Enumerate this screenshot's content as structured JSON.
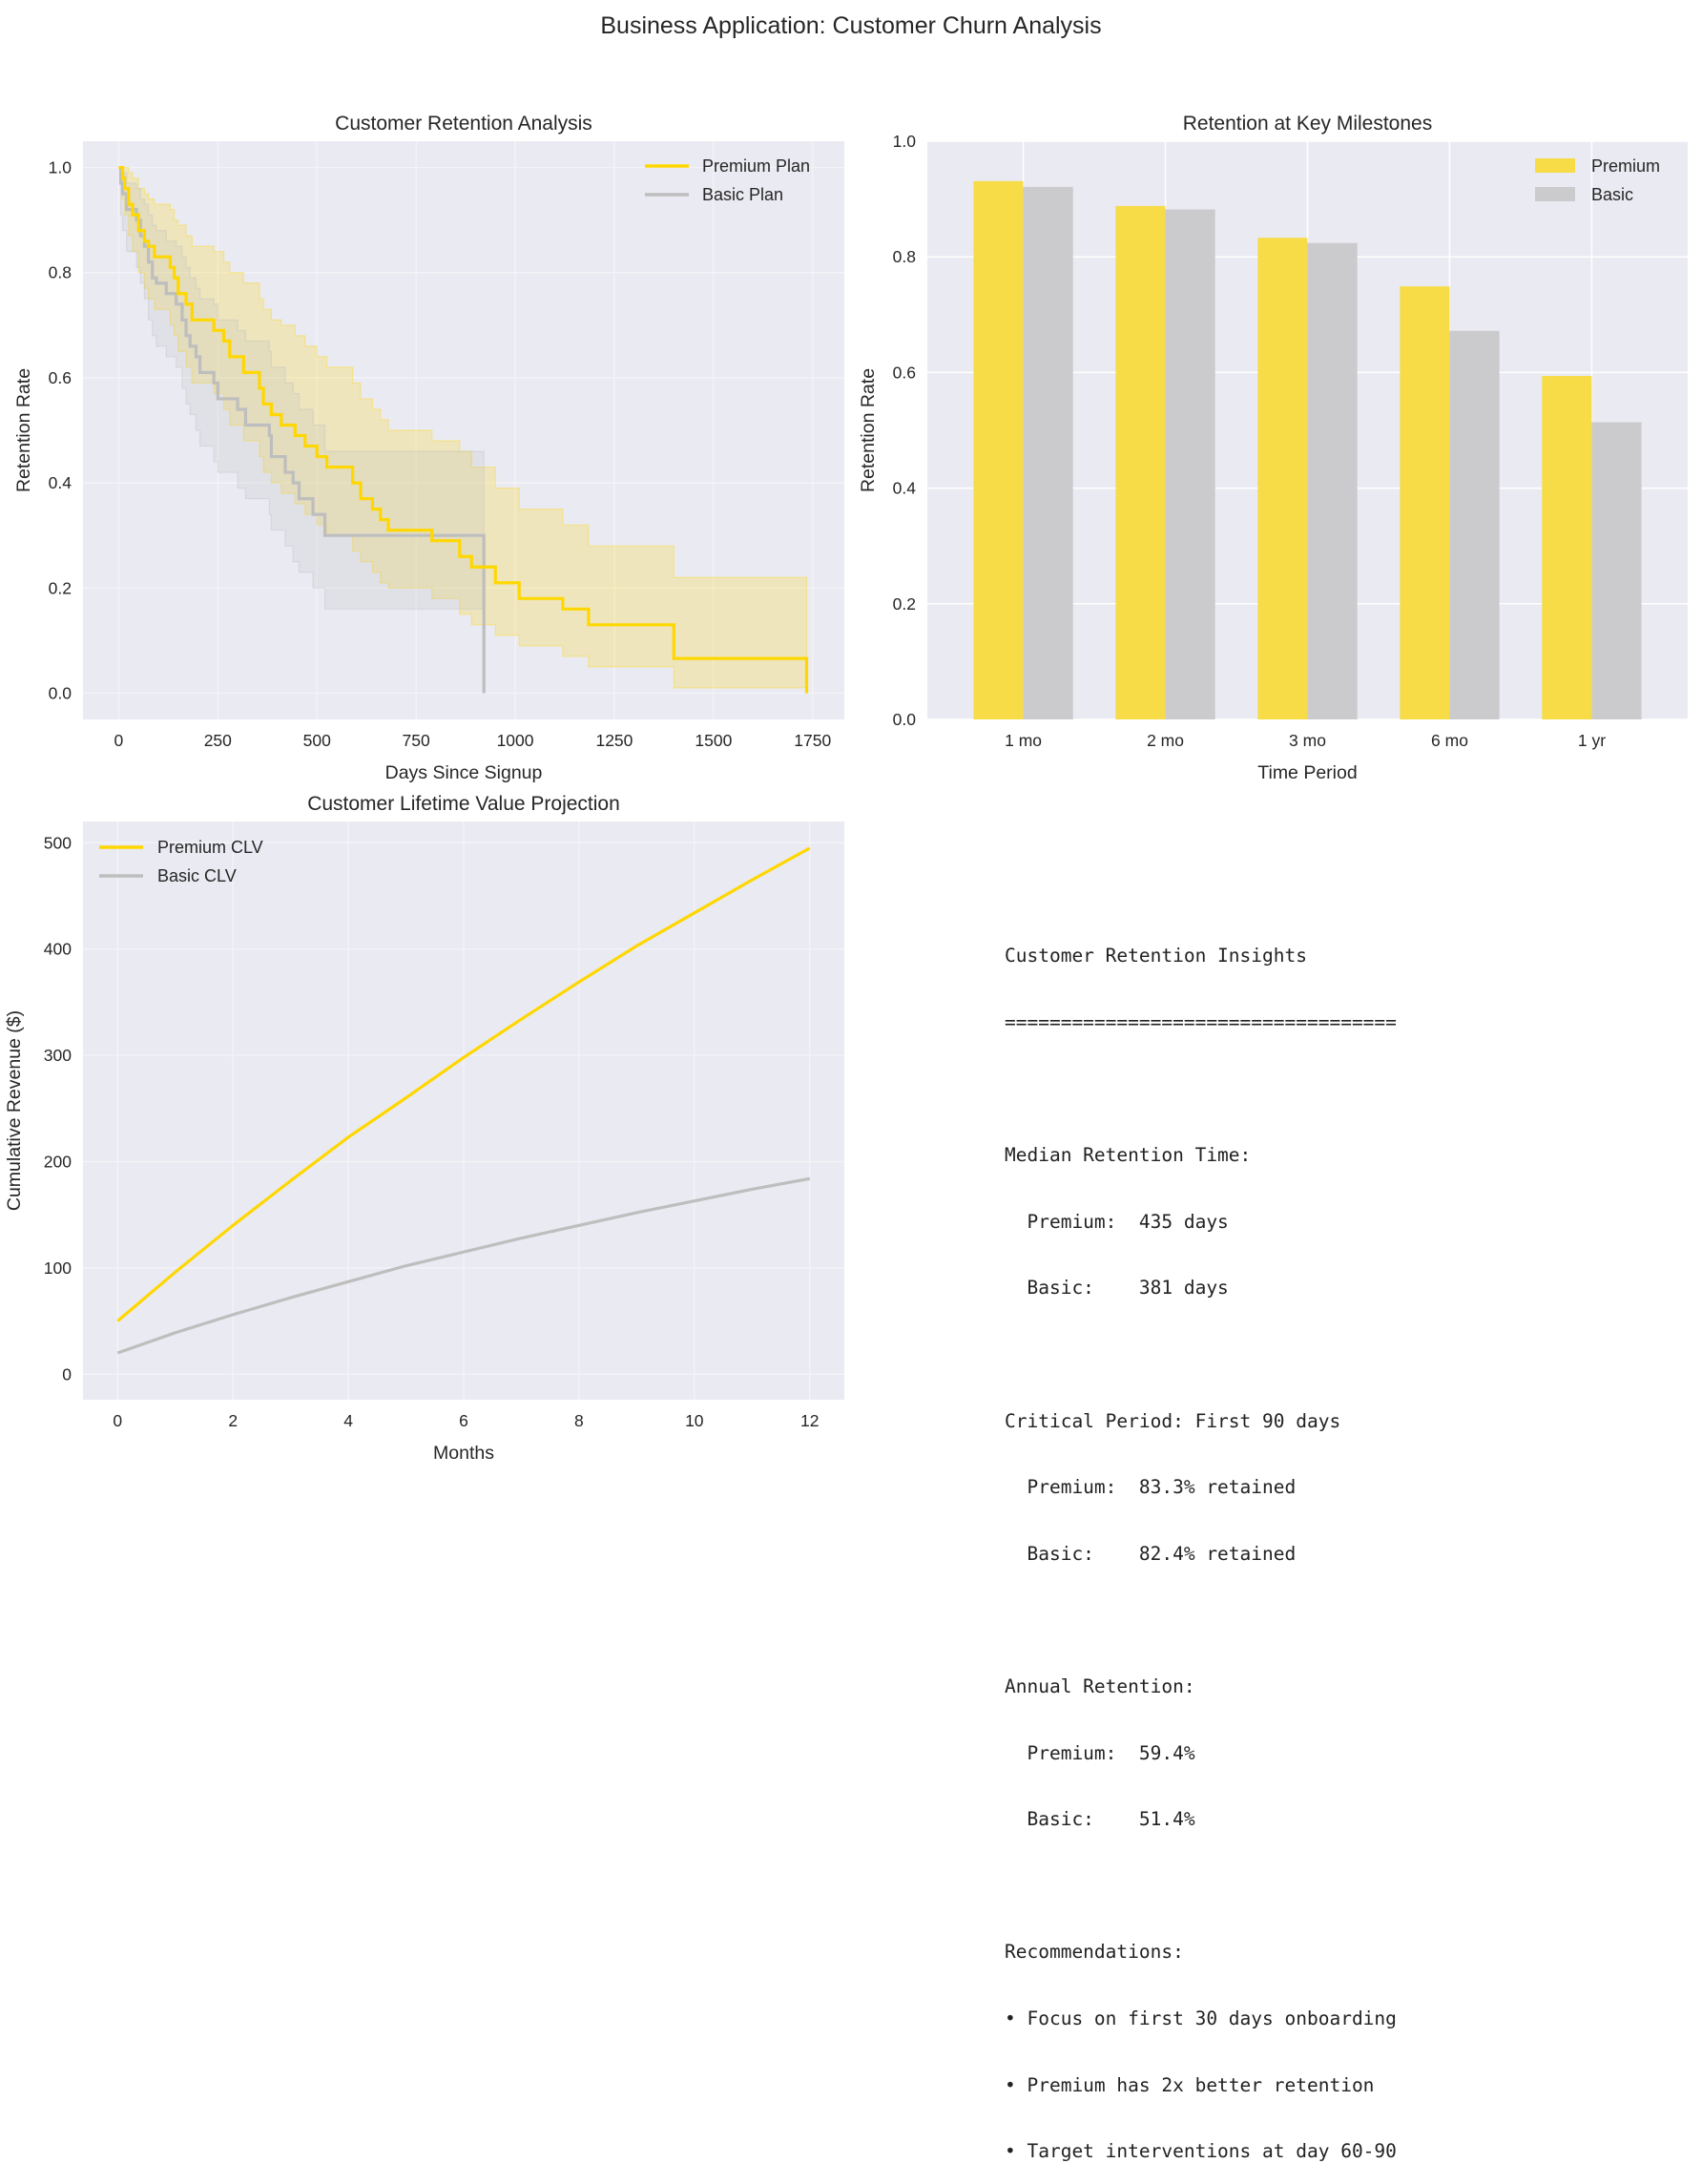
{
  "figure": {
    "suptitle": "Business Application: Customer Churn Analysis",
    "colors": {
      "premium": "#FFD700",
      "basic": "#BEBEBE",
      "premium_bar": "#F7DC48",
      "basic_bar": "#CBCBCD",
      "axes_bg": "#EAEAF2",
      "grid": "#F4F4F8"
    }
  },
  "chart_data": [
    {
      "type": "line",
      "subtype": "kaplan-meier-step",
      "title": "Customer Retention Analysis",
      "xlabel": "Days Since Signup",
      "ylabel": "Retention Rate",
      "xlim": [
        -90,
        1830
      ],
      "ylim": [
        -0.05,
        1.05
      ],
      "xticks": [
        0,
        250,
        500,
        750,
        1000,
        1250,
        1500,
        1750
      ],
      "xtick_labels": [
        "0",
        "250",
        "500",
        "750",
        "1000",
        "1250",
        "1500",
        "1750"
      ],
      "yticks": [
        0.0,
        0.2,
        0.4,
        0.6,
        0.8,
        1.0
      ],
      "ytick_labels": [
        "0.0",
        "0.2",
        "0.4",
        "0.6",
        "0.8",
        "1.0"
      ],
      "grid": true,
      "legend": "top-right",
      "series": [
        {
          "name": "Premium Plan",
          "color_key": "premium",
          "x": [
            0,
            10,
            15,
            25,
            35,
            50,
            65,
            75,
            90,
            130,
            140,
            150,
            170,
            185,
            240,
            265,
            280,
            315,
            355,
            365,
            385,
            410,
            445,
            470,
            500,
            525,
            590,
            610,
            640,
            660,
            680,
            790,
            860,
            890,
            950,
            1010,
            1120,
            1185,
            1400,
            1735
          ],
          "y": [
            1.0,
            0.98,
            0.96,
            0.93,
            0.91,
            0.88,
            0.86,
            0.85,
            0.83,
            0.81,
            0.79,
            0.76,
            0.74,
            0.71,
            0.69,
            0.67,
            0.64,
            0.61,
            0.58,
            0.55,
            0.53,
            0.51,
            0.49,
            0.47,
            0.45,
            0.43,
            0.4,
            0.37,
            0.35,
            0.33,
            0.31,
            0.29,
            0.26,
            0.24,
            0.21,
            0.18,
            0.16,
            0.13,
            0.066,
            0.0
          ],
          "ci_upper": [
            1.0,
            1.0,
            1.0,
            0.99,
            0.98,
            0.96,
            0.95,
            0.94,
            0.93,
            0.92,
            0.9,
            0.89,
            0.87,
            0.85,
            0.84,
            0.82,
            0.8,
            0.78,
            0.75,
            0.73,
            0.71,
            0.7,
            0.68,
            0.66,
            0.64,
            0.62,
            0.59,
            0.56,
            0.54,
            0.52,
            0.5,
            0.48,
            0.46,
            0.43,
            0.39,
            0.35,
            0.32,
            0.28,
            0.22,
            0.22
          ],
          "ci_lower": [
            1.0,
            0.94,
            0.91,
            0.87,
            0.84,
            0.8,
            0.77,
            0.75,
            0.73,
            0.7,
            0.68,
            0.65,
            0.62,
            0.59,
            0.57,
            0.54,
            0.51,
            0.48,
            0.45,
            0.42,
            0.4,
            0.38,
            0.36,
            0.34,
            0.32,
            0.3,
            0.27,
            0.25,
            0.23,
            0.21,
            0.2,
            0.18,
            0.15,
            0.13,
            0.11,
            0.09,
            0.07,
            0.05,
            0.01,
            0.01
          ]
        },
        {
          "name": "Basic Plan",
          "color_key": "basic",
          "x": [
            0,
            5,
            10,
            20,
            45,
            55,
            65,
            75,
            85,
            95,
            120,
            145,
            160,
            170,
            180,
            195,
            205,
            240,
            250,
            300,
            320,
            380,
            385,
            420,
            440,
            455,
            490,
            520,
            921
          ],
          "y": [
            1.0,
            0.97,
            0.95,
            0.92,
            0.9,
            0.87,
            0.85,
            0.82,
            0.79,
            0.78,
            0.76,
            0.74,
            0.71,
            0.68,
            0.66,
            0.64,
            0.61,
            0.59,
            0.56,
            0.54,
            0.51,
            0.49,
            0.45,
            0.42,
            0.4,
            0.37,
            0.34,
            0.3,
            0.0
          ],
          "ci_upper": [
            1.0,
            1.0,
            0.99,
            0.97,
            0.96,
            0.94,
            0.93,
            0.91,
            0.89,
            0.88,
            0.86,
            0.85,
            0.83,
            0.81,
            0.79,
            0.77,
            0.75,
            0.74,
            0.71,
            0.69,
            0.67,
            0.65,
            0.62,
            0.59,
            0.57,
            0.54,
            0.51,
            0.46,
            0.46
          ],
          "ci_lower": [
            1.0,
            0.91,
            0.88,
            0.84,
            0.81,
            0.78,
            0.75,
            0.71,
            0.68,
            0.66,
            0.64,
            0.62,
            0.58,
            0.55,
            0.53,
            0.5,
            0.47,
            0.44,
            0.42,
            0.39,
            0.37,
            0.34,
            0.31,
            0.28,
            0.25,
            0.23,
            0.2,
            0.16,
            0.16
          ]
        }
      ]
    },
    {
      "type": "bar",
      "title": "Retention at Key Milestones",
      "xlabel": "Time Period",
      "ylabel": "Retention Rate",
      "categories": [
        "1 mo",
        "2 mo",
        "3 mo",
        "6 mo",
        "1 yr"
      ],
      "ylim": [
        0,
        1.0
      ],
      "yticks": [
        0.0,
        0.2,
        0.4,
        0.6,
        0.8,
        1.0
      ],
      "ytick_labels": [
        "0.0",
        "0.2",
        "0.4",
        "0.6",
        "0.8",
        "1.0"
      ],
      "grid": true,
      "legend": "top-right",
      "series": [
        {
          "name": "Premium",
          "color_key": "premium_bar",
          "values": [
            0.931,
            0.888,
            0.833,
            0.749,
            0.594
          ]
        },
        {
          "name": "Basic",
          "color_key": "basic_bar",
          "values": [
            0.921,
            0.882,
            0.824,
            0.672,
            0.514
          ]
        }
      ]
    },
    {
      "type": "line",
      "title": "Customer Lifetime Value Projection",
      "xlabel": "Months",
      "ylabel": "Cumulative Revenue ($)",
      "xlim": [
        -0.6,
        12.6
      ],
      "ylim": [
        0,
        520
      ],
      "xticks": [
        0,
        2,
        4,
        6,
        8,
        10,
        12
      ],
      "xtick_labels": [
        "0",
        "2",
        "4",
        "6",
        "8",
        "10",
        "12"
      ],
      "yticks": [
        0,
        100,
        200,
        300,
        400,
        500
      ],
      "ytick_labels": [
        "0",
        "100",
        "200",
        "300",
        "400",
        "500"
      ],
      "grid": true,
      "legend": "top-left",
      "series": [
        {
          "name": "Premium CLV",
          "color_key": "premium",
          "x": [
            0,
            1,
            2,
            3,
            4,
            5,
            6,
            7,
            8,
            9,
            10,
            11,
            12
          ],
          "values": [
            50,
            96,
            140,
            182,
            223,
            260,
            298,
            334,
            369,
            403,
            434,
            465,
            495
          ]
        },
        {
          "name": "Basic CLV",
          "color_key": "basic",
          "x": [
            0,
            1,
            2,
            3,
            4,
            5,
            6,
            7,
            8,
            9,
            10,
            11,
            12
          ],
          "values": [
            20,
            39,
            56,
            72,
            87,
            102,
            115,
            128,
            140,
            152,
            163,
            174,
            184
          ]
        }
      ]
    }
  ],
  "insights": {
    "lines": [
      "Customer Retention Insights",
      "===================================",
      "",
      "Median Retention Time:",
      "  Premium:  435 days",
      "  Basic:    381 days",
      "",
      "Critical Period: First 90 days",
      "  Premium:  83.3% retained",
      "  Basic:    82.4% retained",
      "",
      "Annual Retention:",
      "  Premium:  59.4%",
      "  Basic:    51.4%",
      "",
      "Recommendations:",
      "• Focus on first 30 days onboarding",
      "• Premium has 2x better retention",
      "• Target interventions at day 60-90"
    ]
  }
}
